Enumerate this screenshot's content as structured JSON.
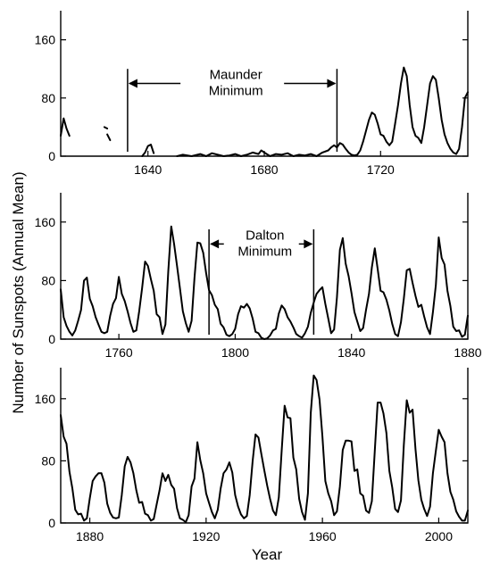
{
  "figure": {
    "ylabel": "Number of Sunspots (Annual Mean)",
    "xlabel": "Year"
  },
  "chart_data": [
    {
      "type": "line",
      "xlim": [
        1610,
        1750
      ],
      "ylim": [
        0,
        200
      ],
      "xticks": [
        1640,
        1680,
        1720
      ],
      "yticks": [
        0,
        80,
        160
      ],
      "annotation": {
        "text": [
          "Maunder",
          "Minimum"
        ],
        "x_start": 1633,
        "x_end": 1705,
        "y_arrow": 100
      },
      "segments": [
        {
          "x": [
            1610,
            1611,
            1612,
            1613
          ],
          "y": [
            28,
            52,
            38,
            28
          ]
        },
        {
          "x": [
            1625,
            1626
          ],
          "y": [
            40,
            38
          ]
        },
        {
          "x": [
            1626,
            1627
          ],
          "y": [
            30,
            22
          ]
        },
        {
          "x": [
            1638,
            1639,
            1640,
            1641,
            1642
          ],
          "y": [
            0,
            5,
            14,
            16,
            4
          ]
        },
        {
          "x": [
            1650,
            1652,
            1655,
            1658,
            1660,
            1662,
            1664,
            1666,
            1668,
            1670,
            1672,
            1674,
            1676,
            1678,
            1679,
            1680,
            1682,
            1684,
            1686,
            1688,
            1690,
            1692,
            1694,
            1696,
            1698,
            1700,
            1702,
            1703,
            1704,
            1705,
            1706,
            1707,
            1708,
            1709,
            1710,
            1711,
            1712,
            1713,
            1714,
            1715,
            1716,
            1717,
            1718,
            1719,
            1720,
            1721,
            1722,
            1723,
            1724,
            1725,
            1726,
            1727,
            1728,
            1729,
            1730,
            1731,
            1732,
            1733,
            1734,
            1735,
            1736,
            1737,
            1738,
            1739,
            1740,
            1741,
            1742,
            1743,
            1744,
            1745,
            1746,
            1747,
            1748,
            1749,
            1750
          ],
          "y": [
            0,
            2,
            0,
            3,
            0,
            4,
            2,
            0,
            1,
            3,
            0,
            2,
            5,
            3,
            8,
            5,
            0,
            3,
            2,
            4,
            0,
            2,
            1,
            3,
            0,
            5,
            8,
            12,
            15,
            12,
            18,
            16,
            10,
            5,
            2,
            1,
            2,
            8,
            20,
            35,
            50,
            60,
            57,
            45,
            30,
            28,
            20,
            15,
            20,
            45,
            70,
            100,
            122,
            110,
            70,
            40,
            28,
            25,
            18,
            40,
            70,
            100,
            110,
            105,
            80,
            50,
            30,
            18,
            10,
            5,
            3,
            10,
            40,
            80,
            88
          ]
        }
      ]
    },
    {
      "type": "line",
      "xlim": [
        1740,
        1880
      ],
      "ylim": [
        0,
        200
      ],
      "xticks": [
        1760,
        1800,
        1840,
        1880
      ],
      "yticks": [
        0,
        80,
        160
      ],
      "annotation": {
        "text": [
          "Dalton",
          "Minimum"
        ],
        "x_start": 1791,
        "x_end": 1827,
        "y_arrow": 130
      },
      "segments": [
        {
          "x": [
            1740,
            1741,
            1742,
            1743,
            1744,
            1745,
            1746,
            1747,
            1748,
            1749,
            1750,
            1751,
            1752,
            1753,
            1754,
            1755,
            1756,
            1757,
            1758,
            1759,
            1760,
            1761,
            1762,
            1763,
            1764,
            1765,
            1766,
            1767,
            1768,
            1769,
            1770,
            1771,
            1772,
            1773,
            1774,
            1775,
            1776,
            1777,
            1778,
            1779,
            1780,
            1781,
            1782,
            1783,
            1784,
            1785,
            1786,
            1787,
            1788,
            1789,
            1790,
            1791,
            1792,
            1793,
            1794,
            1795,
            1796,
            1797,
            1798,
            1799,
            1800,
            1801,
            1802,
            1803,
            1804,
            1805,
            1806,
            1807,
            1808,
            1809,
            1810,
            1811,
            1812,
            1813,
            1814,
            1815,
            1816,
            1817,
            1818,
            1819,
            1820,
            1821,
            1822,
            1823,
            1824,
            1825,
            1826,
            1827,
            1828,
            1829,
            1830,
            1831,
            1832,
            1833,
            1834,
            1835,
            1836,
            1837,
            1838,
            1839,
            1840,
            1841,
            1842,
            1843,
            1844,
            1845,
            1846,
            1847,
            1848,
            1849,
            1850,
            1851,
            1852,
            1853,
            1854,
            1855,
            1856,
            1857,
            1858,
            1859,
            1860,
            1861,
            1862,
            1863,
            1864,
            1865,
            1866,
            1867,
            1868,
            1869,
            1870,
            1871,
            1872,
            1873,
            1874,
            1875,
            1876,
            1877,
            1878,
            1879,
            1880
          ],
          "y": [
            68,
            30,
            18,
            10,
            5,
            12,
            25,
            40,
            80,
            84,
            55,
            45,
            30,
            20,
            10,
            8,
            10,
            32,
            48,
            56,
            85,
            62,
            52,
            38,
            22,
            10,
            12,
            38,
            70,
            106,
            100,
            82,
            66,
            34,
            30,
            7,
            20,
            93,
            154,
            130,
            100,
            70,
            38,
            22,
            10,
            25,
            83,
            132,
            131,
            118,
            90,
            67,
            60,
            47,
            41,
            21,
            16,
            6,
            4,
            7,
            14,
            34,
            45,
            43,
            48,
            42,
            28,
            10,
            8,
            2,
            0,
            1,
            5,
            12,
            14,
            35,
            46,
            41,
            30,
            24,
            16,
            7,
            4,
            2,
            8,
            17,
            36,
            50,
            62,
            67,
            71,
            48,
            28,
            8,
            13,
            57,
            122,
            138,
            103,
            86,
            63,
            37,
            24,
            11,
            15,
            40,
            62,
            98,
            124,
            96,
            66,
            64,
            54,
            39,
            21,
            7,
            4,
            23,
            55,
            94,
            96,
            77,
            59,
            44,
            47,
            31,
            16,
            7,
            37,
            74,
            139,
            111,
            102,
            66,
            45,
            17,
            11,
            12,
            3,
            6,
            32
          ]
        }
      ]
    },
    {
      "type": "line",
      "xlim": [
        1870,
        2010
      ],
      "ylim": [
        0,
        200
      ],
      "xticks": [
        1880,
        1920,
        1960,
        2000
      ],
      "yticks": [
        0,
        80,
        160
      ],
      "segments": [
        {
          "x": [
            1870,
            1871,
            1872,
            1873,
            1874,
            1875,
            1876,
            1877,
            1878,
            1879,
            1880,
            1881,
            1882,
            1883,
            1884,
            1885,
            1886,
            1887,
            1888,
            1889,
            1890,
            1891,
            1892,
            1893,
            1894,
            1895,
            1896,
            1897,
            1898,
            1899,
            1900,
            1901,
            1902,
            1903,
            1904,
            1905,
            1906,
            1907,
            1908,
            1909,
            1910,
            1911,
            1912,
            1913,
            1914,
            1915,
            1916,
            1917,
            1918,
            1919,
            1920,
            1921,
            1922,
            1923,
            1924,
            1925,
            1926,
            1927,
            1928,
            1929,
            1930,
            1931,
            1932,
            1933,
            1934,
            1935,
            1936,
            1937,
            1938,
            1939,
            1940,
            1941,
            1942,
            1943,
            1944,
            1945,
            1946,
            1947,
            1948,
            1949,
            1950,
            1951,
            1952,
            1953,
            1954,
            1955,
            1956,
            1957,
            1958,
            1959,
            1960,
            1961,
            1962,
            1963,
            1964,
            1965,
            1966,
            1967,
            1968,
            1969,
            1970,
            1971,
            1972,
            1973,
            1974,
            1975,
            1976,
            1977,
            1978,
            1979,
            1980,
            1981,
            1982,
            1983,
            1984,
            1985,
            1986,
            1987,
            1988,
            1989,
            1990,
            1991,
            1992,
            1993,
            1994,
            1995,
            1996,
            1997,
            1998,
            1999,
            2000,
            2001,
            2002,
            2003,
            2004,
            2005,
            2006,
            2007,
            2008,
            2009,
            2010
          ],
          "y": [
            139,
            111,
            102,
            66,
            45,
            17,
            11,
            12,
            3,
            6,
            32,
            54,
            60,
            64,
            64,
            52,
            25,
            13,
            7,
            6,
            7,
            36,
            73,
            85,
            78,
            64,
            42,
            26,
            27,
            12,
            10,
            3,
            5,
            24,
            42,
            64,
            54,
            62,
            49,
            44,
            19,
            6,
            4,
            1,
            10,
            47,
            57,
            104,
            81,
            64,
            38,
            26,
            14,
            6,
            17,
            44,
            64,
            69,
            78,
            65,
            36,
            21,
            11,
            6,
            9,
            36,
            80,
            114,
            110,
            89,
            68,
            48,
            31,
            16,
            10,
            33,
            93,
            151,
            136,
            135,
            84,
            69,
            31,
            14,
            4,
            38,
            142,
            190,
            184,
            159,
            112,
            54,
            38,
            28,
            10,
            15,
            47,
            94,
            106,
            106,
            105,
            67,
            69,
            38,
            35,
            16,
            13,
            28,
            93,
            155,
            155,
            141,
            116,
            67,
            46,
            18,
            14,
            29,
            100,
            158,
            142,
            146,
            95,
            55,
            30,
            18,
            9,
            21,
            64,
            93,
            120,
            111,
            104,
            64,
            40,
            30,
            15,
            8,
            3,
            3,
            16
          ]
        }
      ]
    }
  ]
}
